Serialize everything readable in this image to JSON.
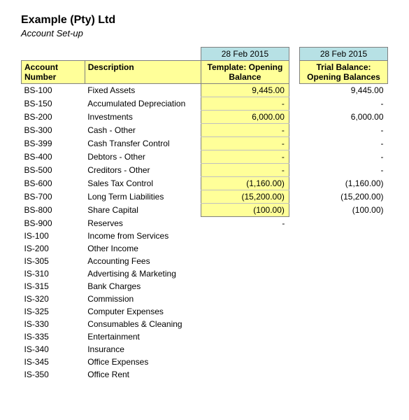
{
  "company": "Example (Pty) Ltd",
  "subtitle": "Account Set-up",
  "dates": {
    "template": "28 Feb 2015",
    "trial": "28 Feb 2015"
  },
  "headers": {
    "account": "Account Number",
    "description": "Description",
    "template": "Template: Opening Balance",
    "trial": "Trial Balance: Opening Balances"
  },
  "colors": {
    "header_bg": "#ffff99",
    "date_bg": "#b7e1e5",
    "highlight_bg": "#ffff99",
    "border": "#808080",
    "row_border": "#c0c0c0"
  },
  "rows": [
    {
      "acct": "BS-100",
      "desc": "Fixed Assets",
      "template": "9,445.00",
      "trial": "9,445.00",
      "hl": true
    },
    {
      "acct": "BS-150",
      "desc": "Accumulated Depreciation",
      "template": "-",
      "trial": "-",
      "hl": true
    },
    {
      "acct": "BS-200",
      "desc": "Investments",
      "template": "6,000.00",
      "trial": "6,000.00",
      "hl": true
    },
    {
      "acct": "BS-300",
      "desc": "Cash - Other",
      "template": "-",
      "trial": "-",
      "hl": true
    },
    {
      "acct": "BS-399",
      "desc": "Cash Transfer Control",
      "template": "-",
      "trial": "-",
      "hl": true
    },
    {
      "acct": "BS-400",
      "desc": "Debtors - Other",
      "template": "-",
      "trial": "-",
      "hl": true
    },
    {
      "acct": "BS-500",
      "desc": "Creditors - Other",
      "template": "-",
      "trial": "-",
      "hl": true
    },
    {
      "acct": "BS-600",
      "desc": "Sales Tax Control",
      "template": "(1,160.00)",
      "trial": "(1,160.00)",
      "hl": true
    },
    {
      "acct": "BS-700",
      "desc": "Long Term Liabilities",
      "template": "(15,200.00)",
      "trial": "(15,200.00)",
      "hl": true
    },
    {
      "acct": "BS-800",
      "desc": "Share Capital",
      "template": "(100.00)",
      "trial": "(100.00)",
      "hl": true
    },
    {
      "acct": "BS-900",
      "desc": "Reserves",
      "template": "-",
      "trial": "",
      "hl": false
    },
    {
      "acct": "IS-100",
      "desc": "Income from Services",
      "template": "",
      "trial": "",
      "hl": false
    },
    {
      "acct": "IS-200",
      "desc": "Other Income",
      "template": "",
      "trial": "",
      "hl": false
    },
    {
      "acct": "IS-305",
      "desc": "Accounting Fees",
      "template": "",
      "trial": "",
      "hl": false
    },
    {
      "acct": "IS-310",
      "desc": "Advertising & Marketing",
      "template": "",
      "trial": "",
      "hl": false
    },
    {
      "acct": "IS-315",
      "desc": "Bank Charges",
      "template": "",
      "trial": "",
      "hl": false
    },
    {
      "acct": "IS-320",
      "desc": "Commission",
      "template": "",
      "trial": "",
      "hl": false
    },
    {
      "acct": "IS-325",
      "desc": "Computer Expenses",
      "template": "",
      "trial": "",
      "hl": false
    },
    {
      "acct": "IS-330",
      "desc": "Consumables & Cleaning",
      "template": "",
      "trial": "",
      "hl": false
    },
    {
      "acct": "IS-335",
      "desc": "Entertainment",
      "template": "",
      "trial": "",
      "hl": false
    },
    {
      "acct": "IS-340",
      "desc": "Insurance",
      "template": "",
      "trial": "",
      "hl": false
    },
    {
      "acct": "IS-345",
      "desc": "Office Expenses",
      "template": "",
      "trial": "",
      "hl": false
    },
    {
      "acct": "IS-350",
      "desc": "Office Rent",
      "template": "",
      "trial": "",
      "hl": false
    }
  ]
}
